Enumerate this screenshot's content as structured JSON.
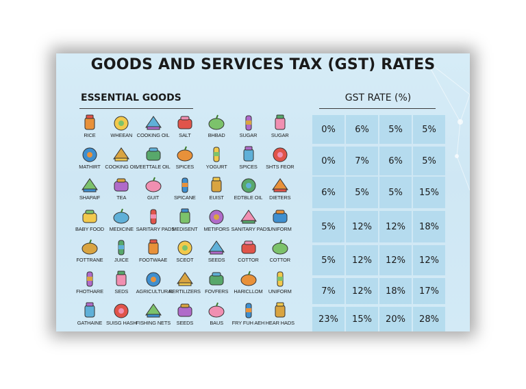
{
  "title": "GOODS AND SERVICES TAX (GST) RATES",
  "left_heading": "ESSENTIAL GOODS",
  "right_heading": "GST RATE (%)",
  "goods": [
    [
      {
        "label": "RICE",
        "icon": "rice-icon"
      },
      {
        "label": "WHEEAN",
        "icon": "wheat-icon"
      },
      {
        "label": "COOKING OIL",
        "icon": "cooking-oil-icon"
      },
      {
        "label": "SALT",
        "icon": "salt-icon"
      },
      {
        "label": "BHBAD",
        "icon": "bread-icon"
      },
      {
        "label": "SUGAR",
        "icon": "sugar-icon"
      },
      {
        "label": "SUGAR",
        "icon": "shoe-icon"
      }
    ],
    [
      {
        "label": "MATHIRT",
        "icon": "milk-carton-icon"
      },
      {
        "label": "COOKING OIL",
        "icon": "bottle-icon"
      },
      {
        "label": "VEETTALE OIL",
        "icon": "milk-pack-icon"
      },
      {
        "label": "SPICES",
        "icon": "spices-icon"
      },
      {
        "label": "YOGURT",
        "icon": "yogurt-icon"
      },
      {
        "label": "SPICES",
        "icon": "spice-bottle-icon"
      },
      {
        "label": "SHTS FEOR",
        "icon": "jar-icon"
      }
    ],
    [
      {
        "label": "SHAPAIF",
        "icon": "shampoo-icon"
      },
      {
        "label": "TEA",
        "icon": "tea-icon"
      },
      {
        "label": "GUIT",
        "icon": "fruit-icon"
      },
      {
        "label": "SPICANE",
        "icon": "apple-icon"
      },
      {
        "label": "EUIST",
        "icon": "biscuit-icon"
      },
      {
        "label": "EDTBLE OIL",
        "icon": "edible-oil-icon"
      },
      {
        "label": "DIETERS",
        "icon": "diaper-icon"
      }
    ],
    [
      {
        "label": "BABY FOOD",
        "icon": "baby-bottle-icon"
      },
      {
        "label": "MEDICINE",
        "icon": "medicine-icon"
      },
      {
        "label": "SARITARY PADS",
        "icon": "sanitary-pad-icon"
      },
      {
        "label": "MEDISENT",
        "icon": "ointment-icon"
      },
      {
        "label": "METIFORS",
        "icon": "pill-bottle-icon"
      },
      {
        "label": "SANITARY PADS",
        "icon": "hygiene-icon"
      },
      {
        "label": "UNIFORM",
        "icon": "uniform-icon"
      }
    ],
    [
      {
        "label": "FOTTRANE",
        "icon": "jam-jar-icon"
      },
      {
        "label": "JUICE",
        "icon": "juice-icon"
      },
      {
        "label": "FOOTWAAE",
        "icon": "backpack-icon"
      },
      {
        "label": "SCEOT",
        "icon": "flower-icon"
      },
      {
        "label": "SEEDS",
        "icon": "candles-icon"
      },
      {
        "label": "COTTOR",
        "icon": "umbrella-icon"
      },
      {
        "label": "COTTOR",
        "icon": "fabric-icon"
      }
    ],
    [
      {
        "label": "FHOTHARE",
        "icon": "parasol-icon"
      },
      {
        "label": "SEDS",
        "icon": "book-icon"
      },
      {
        "label": "AGRICULTURAL",
        "icon": "helmet-icon"
      },
      {
        "label": "FERTILIZERS",
        "icon": "seeds-icon"
      },
      {
        "label": "FOVFERS",
        "icon": "ornaments-icon"
      },
      {
        "label": "HARICLLOM",
        "icon": "scissors-icon"
      },
      {
        "label": "UNIFORM",
        "icon": "folder-icon"
      }
    ],
    [
      {
        "label": "GATHAINE",
        "icon": "bicycle-icon"
      },
      {
        "label": "SUISG HASH",
        "icon": "school-bag-icon"
      },
      {
        "label": "FISHING NETS",
        "icon": "sports-helmet-icon"
      },
      {
        "label": "SEEDS",
        "icon": "tools-icon"
      },
      {
        "label": "BAUS",
        "icon": "bag-icon"
      },
      {
        "label": "FRY FUH AEH",
        "icon": "fishing-tool-icon"
      },
      {
        "label": "HEAR HADS",
        "icon": "hook-icon"
      }
    ]
  ],
  "rates": [
    [
      "0%",
      "6%",
      "5%",
      "5%"
    ],
    [
      "0%",
      "7%",
      "6%",
      "5%"
    ],
    [
      "6%",
      "5%",
      "5%",
      "15%"
    ],
    [
      "5%",
      "12%",
      "12%",
      "18%"
    ],
    [
      "5%",
      "12%",
      "12%",
      "12%"
    ],
    [
      "7%",
      "12%",
      "18%",
      "17%"
    ],
    [
      "23%",
      "15%",
      "20%",
      "28%"
    ]
  ],
  "colors": {
    "background": "#d3eaf6",
    "rate_cell": "#addbec",
    "text": "#1a1a1a"
  }
}
